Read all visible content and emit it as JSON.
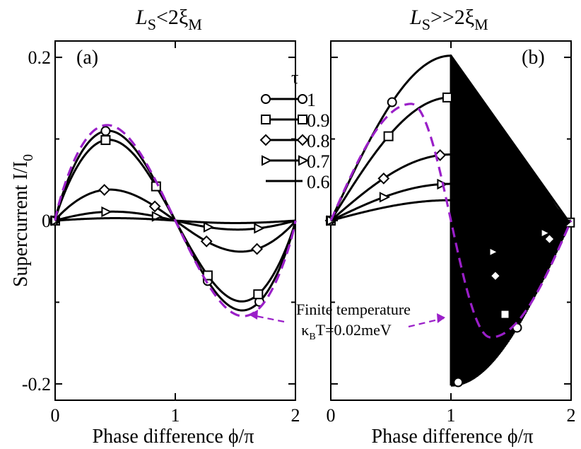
{
  "colors": {
    "curves": "#000000",
    "finite_temperature": "#9a1fc8"
  },
  "figure": {
    "ylabel": "Supercurrent I/I",
    "ylabel_sub": "0",
    "annotation_line1": "Finite temperature",
    "annotation_kappa": "κ",
    "annotation_sub": "B",
    "annotation_rest": "T=0.02meV",
    "legend": {
      "title": "τ",
      "entries": [
        {
          "label": "1",
          "marker": "circle"
        },
        {
          "label": "0.9",
          "marker": "square"
        },
        {
          "label": "0.8",
          "marker": "diamond"
        },
        {
          "label": "0.7",
          "marker": "triangle-right"
        },
        {
          "label": "0.6",
          "marker": "none"
        }
      ]
    }
  },
  "chart_data": [
    {
      "type": "line",
      "panel_label": "(a)",
      "title_main": "L",
      "title_sub1": "S",
      "title_rel": "<2ξ",
      "title_sub2": "M",
      "xlabel": "Phase difference ϕ/π",
      "xlim": [
        0,
        2
      ],
      "ylim": [
        -0.22,
        0.22
      ],
      "x_ticks": [
        "0",
        "1",
        "2"
      ],
      "y_ticks": [
        "-0.2",
        "0",
        "0.2"
      ],
      "y_tick_values": [
        -0.2,
        0,
        0.2
      ],
      "series": [
        {
          "name": "τ=1",
          "marker": "circle",
          "amplitude": 0.11,
          "peak_shift": 0.15,
          "marker_x": [
            0,
            0.42,
            1.27,
            1.7
          ]
        },
        {
          "name": "τ=0.9",
          "marker": "square",
          "amplitude": 0.099,
          "peak_shift": 0.14,
          "marker_x": [
            0,
            0.42,
            0.84,
            1.27,
            1.69
          ]
        },
        {
          "name": "τ=0.8",
          "marker": "diamond",
          "amplitude": 0.038,
          "peak_shift": 0.12,
          "marker_x": [
            0,
            0.41,
            0.83,
            1.26,
            1.68
          ]
        },
        {
          "name": "τ=0.7",
          "marker": "triangle-right",
          "amplitude": 0.011,
          "peak_shift": 0.05,
          "marker_x": [
            0,
            0.42,
            0.84,
            1.27,
            1.69
          ]
        },
        {
          "name": "τ=0.6",
          "marker": "none",
          "amplitude": 0.003,
          "peak_shift": 0.0,
          "marker_x": []
        }
      ],
      "finite_temperature": {
        "amplitude": 0.117,
        "peak_shift": 0.17
      }
    },
    {
      "type": "line",
      "panel_label": "(b)",
      "title_main": "L",
      "title_sub1": "S",
      "title_rel": ">>2ξ",
      "title_sub2": "M",
      "xlabel": "Phase difference ϕ/π",
      "xlim": [
        0,
        2
      ],
      "ylim": [
        -0.22,
        0.22
      ],
      "x_ticks": [
        "0",
        "1",
        "2"
      ],
      "y_ticks": [
        "",
        "",
        ""
      ],
      "y_tick_values": [
        -0.2,
        0,
        0.2
      ],
      "series": [
        {
          "name": "τ=1",
          "marker": "circle",
          "jump_value": 0.202,
          "marker_x": [
            0,
            0.51,
            1.06,
            1.55
          ]
        },
        {
          "name": "τ=0.9",
          "marker": "square",
          "jump_value": 0.151,
          "marker_x": [
            0,
            0.48,
            0.97,
            1.45,
            1.99
          ]
        },
        {
          "name": "τ=0.8",
          "marker": "diamond",
          "jump_value": 0.081,
          "marker_x": [
            0,
            0.44,
            0.91,
            1.37,
            1.82
          ]
        },
        {
          "name": "τ=0.7",
          "marker": "triangle-right",
          "jump_value": 0.045,
          "marker_x": [
            0,
            0.44,
            0.92,
            1.35,
            1.78
          ]
        },
        {
          "name": "τ=0.6",
          "marker": "none",
          "jump_value": 0.025,
          "marker_x": []
        }
      ],
      "finite_temperature": {
        "peak": 0.143,
        "peak_x": 0.67
      }
    }
  ]
}
